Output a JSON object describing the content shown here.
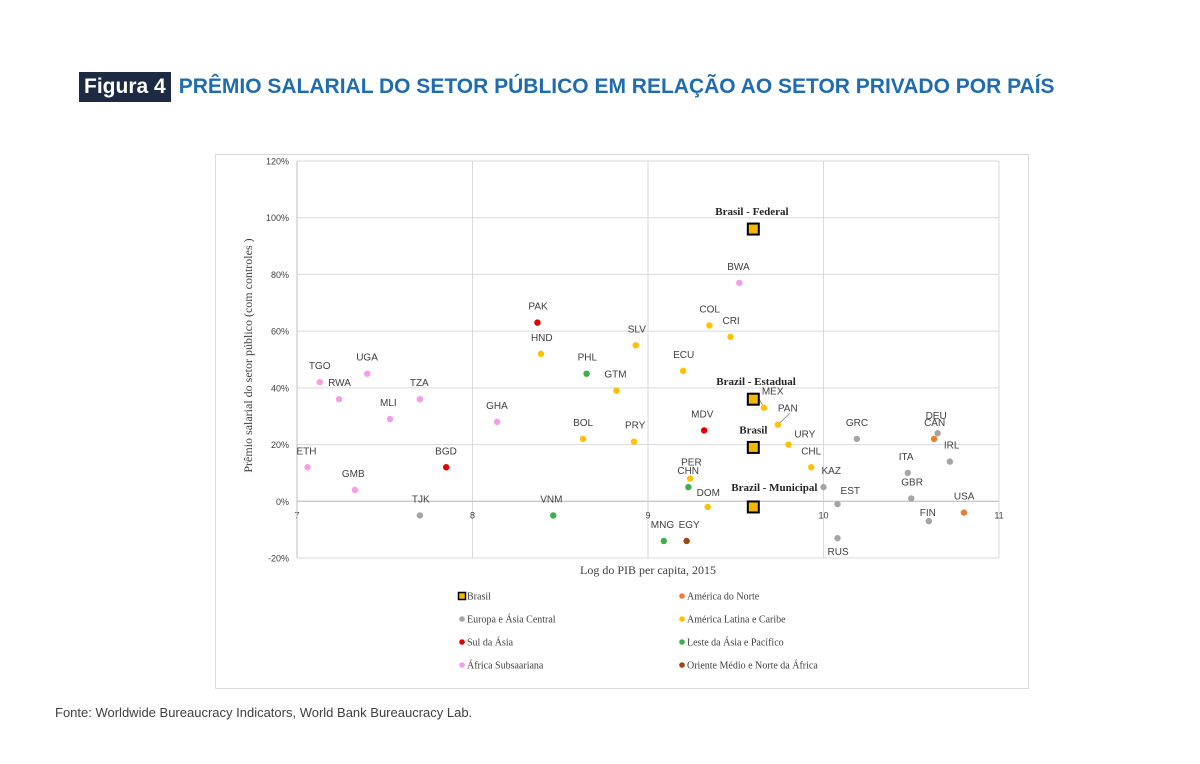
{
  "figure": {
    "label": "Figura 4",
    "title": "PRÊMIO SALARIAL DO SETOR PÚBLICO EM RELAÇÃO AO SETOR PRIVADO POR PAÍS"
  },
  "source": "Fonte: Worldwide Bureaucracy Indicators, World Bank Bureaucracy Lab.",
  "colors": {
    "Brasil": "#f5b800",
    "América do Norte": "#ed7d31",
    "Europa e Ásia Central": "#a5a5a5",
    "América Latina e Caribe": "#ffc000",
    "Sul da Ásia": "#e00000",
    "Leste da Ásia e Pacífico": "#3fae49",
    "África Subsaariana": "#f79ce8",
    "Oriente Médio e Norte da África": "#a3470f"
  },
  "chart_data": {
    "type": "scatter",
    "title": "",
    "xlabel": "Log do PIB  per capita, 2015",
    "ylabel": "Prêmio  salarial do setor público (com controles )",
    "xlim": [
      7,
      11
    ],
    "ylim": [
      -20,
      120
    ],
    "xticks": [
      7,
      8,
      9,
      10,
      11
    ],
    "yticks": [
      -20,
      0,
      20,
      40,
      60,
      80,
      100,
      120
    ],
    "ytick_labels": [
      "-20%",
      "0%",
      "20%",
      "40%",
      "60%",
      "80%",
      "100%",
      "120%"
    ],
    "xtick_labels": [
      "7",
      "8",
      "9",
      "10",
      "11"
    ],
    "grid": true,
    "legend": [
      "Brasil",
      "América do Norte",
      "Europa e Ásia Central",
      "América Latina e Caribe",
      "Sul da Ásia",
      "Leste da Ásia e Pacífico",
      "África Subsaariana",
      "Oriente Médio e Norte da África"
    ],
    "points": [
      {
        "label": "Brasil - Federal",
        "x": 9.6,
        "y": 96,
        "group": "Brasil"
      },
      {
        "label": "Brazil - Estadual",
        "x": 9.6,
        "y": 36,
        "group": "Brasil"
      },
      {
        "label": "Brasil",
        "x": 9.6,
        "y": 19,
        "group": "Brasil"
      },
      {
        "label": "Brazil - Municipal",
        "x": 9.6,
        "y": -2,
        "group": "Brasil"
      },
      {
        "label": "BWA",
        "x": 9.52,
        "y": 77,
        "group": "África Subsaariana"
      },
      {
        "label": "TGO",
        "x": 7.13,
        "y": 42,
        "group": "África Subsaariana"
      },
      {
        "label": "RWA",
        "x": 7.24,
        "y": 36,
        "group": "África Subsaariana"
      },
      {
        "label": "UGA",
        "x": 7.4,
        "y": 45,
        "group": "África Subsaariana"
      },
      {
        "label": "TZA",
        "x": 7.7,
        "y": 36,
        "group": "África Subsaariana"
      },
      {
        "label": "MLI",
        "x": 7.53,
        "y": 29,
        "group": "África Subsaariana"
      },
      {
        "label": "GHA",
        "x": 8.14,
        "y": 28,
        "group": "África Subsaariana"
      },
      {
        "label": "ETH",
        "x": 7.06,
        "y": 12,
        "group": "África Subsaariana"
      },
      {
        "label": "GMB",
        "x": 7.33,
        "y": 4,
        "group": "África Subsaariana"
      },
      {
        "label": "PAK",
        "x": 8.37,
        "y": 63,
        "group": "Sul da Ásia"
      },
      {
        "label": "BGD",
        "x": 7.85,
        "y": 12,
        "group": "Sul da Ásia"
      },
      {
        "label": "MDV",
        "x": 9.32,
        "y": 25,
        "group": "Sul da Ásia"
      },
      {
        "label": "HND",
        "x": 8.39,
        "y": 52,
        "group": "América Latina e Caribe"
      },
      {
        "label": "SLV",
        "x": 8.93,
        "y": 55,
        "group": "América Latina e Caribe"
      },
      {
        "label": "COL",
        "x": 9.35,
        "y": 62,
        "group": "América Latina e Caribe"
      },
      {
        "label": "CRI",
        "x": 9.47,
        "y": 58,
        "group": "América Latina e Caribe"
      },
      {
        "label": "ECU",
        "x": 9.2,
        "y": 46,
        "group": "América Latina e Caribe"
      },
      {
        "label": "GTM",
        "x": 8.82,
        "y": 39,
        "group": "América Latina e Caribe"
      },
      {
        "label": "BOL",
        "x": 8.63,
        "y": 22,
        "group": "América Latina e Caribe"
      },
      {
        "label": "PRY",
        "x": 8.92,
        "y": 21,
        "group": "América Latina e Caribe"
      },
      {
        "label": "MEX",
        "x": 9.66,
        "y": 33,
        "group": "América Latina e Caribe"
      },
      {
        "label": "PAN",
        "x": 9.74,
        "y": 27,
        "group": "América Latina e Caribe"
      },
      {
        "label": "URY",
        "x": 9.8,
        "y": 20,
        "group": "América Latina e Caribe"
      },
      {
        "label": "CHL",
        "x": 9.93,
        "y": 12,
        "group": "América Latina e Caribe"
      },
      {
        "label": "PER",
        "x": 9.24,
        "y": 8,
        "group": "América Latina e Caribe"
      },
      {
        "label": "DOM",
        "x": 9.34,
        "y": -2,
        "group": "América Latina e Caribe"
      },
      {
        "label": "PHL",
        "x": 8.65,
        "y": 45,
        "group": "Leste da Ásia e Pacífico"
      },
      {
        "label": "VNM",
        "x": 8.46,
        "y": -5,
        "group": "Leste da Ásia e Pacífico"
      },
      {
        "label": "CHN",
        "x": 9.23,
        "y": 5,
        "group": "Leste da Ásia e Pacífico"
      },
      {
        "label": "MNG",
        "x": 9.09,
        "y": -14,
        "group": "Leste da Ásia e Pacífico"
      },
      {
        "label": "EGY",
        "x": 9.22,
        "y": -14,
        "group": "Oriente Médio e Norte da África"
      },
      {
        "label": "GRC",
        "x": 10.19,
        "y": 22,
        "group": "Europa e Ásia Central"
      },
      {
        "label": "KAZ",
        "x": 10.0,
        "y": 5,
        "group": "Europa e Ásia Central"
      },
      {
        "label": "EST",
        "x": 10.08,
        "y": -1,
        "group": "Europa e Ásia Central"
      },
      {
        "label": "RUS",
        "x": 10.08,
        "y": -13,
        "group": "Europa e Ásia Central"
      },
      {
        "label": "TJK",
        "x": 7.7,
        "y": -5,
        "group": "Europa e Ásia Central"
      },
      {
        "label": "ITA",
        "x": 10.48,
        "y": 10,
        "group": "Europa e Ásia Central"
      },
      {
        "label": "GBR",
        "x": 10.5,
        "y": 1,
        "group": "Europa e Ásia Central"
      },
      {
        "label": "FIN",
        "x": 10.6,
        "y": -7,
        "group": "Europa e Ásia Central"
      },
      {
        "label": "DEU",
        "x": 10.65,
        "y": 24,
        "group": "Europa e Ásia Central"
      },
      {
        "label": "IRL",
        "x": 10.72,
        "y": 14,
        "group": "Europa e Ásia Central"
      },
      {
        "label": "CAN",
        "x": 10.63,
        "y": 22,
        "group": "América do Norte"
      },
      {
        "label": "USA",
        "x": 10.8,
        "y": -4,
        "group": "América do Norte"
      }
    ]
  }
}
